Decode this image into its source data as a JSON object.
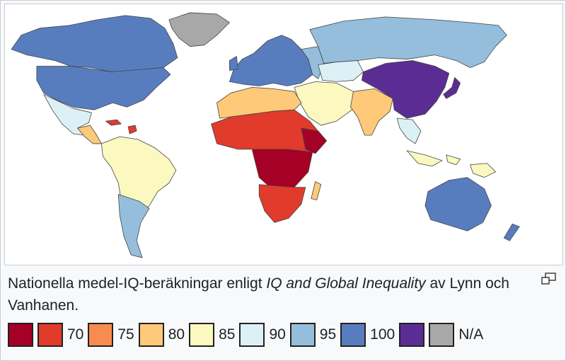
{
  "caption": {
    "prefix": "Nationella medel-IQ-beräkningar enligt ",
    "italic": "IQ and Global Inequality",
    "suffix": " av Lynn och Vanhanen."
  },
  "legend": [
    {
      "label": "",
      "color": "#a50026"
    },
    {
      "label": "70",
      "color": "#e03b2b"
    },
    {
      "label": "75",
      "color": "#f88b4f"
    },
    {
      "label": "80",
      "color": "#fec978"
    },
    {
      "label": "85",
      "color": "#fbf8c0"
    },
    {
      "label": "90",
      "color": "#dcf0f5"
    },
    {
      "label": "95",
      "color": "#95bedc"
    },
    {
      "label": "100",
      "color": "#587dbf"
    },
    {
      "label": "",
      "color": "#5b2d94"
    },
    {
      "label": "N/A",
      "color": "#a8a8a8"
    }
  ],
  "icons": {
    "expand": "magnify-icon"
  }
}
